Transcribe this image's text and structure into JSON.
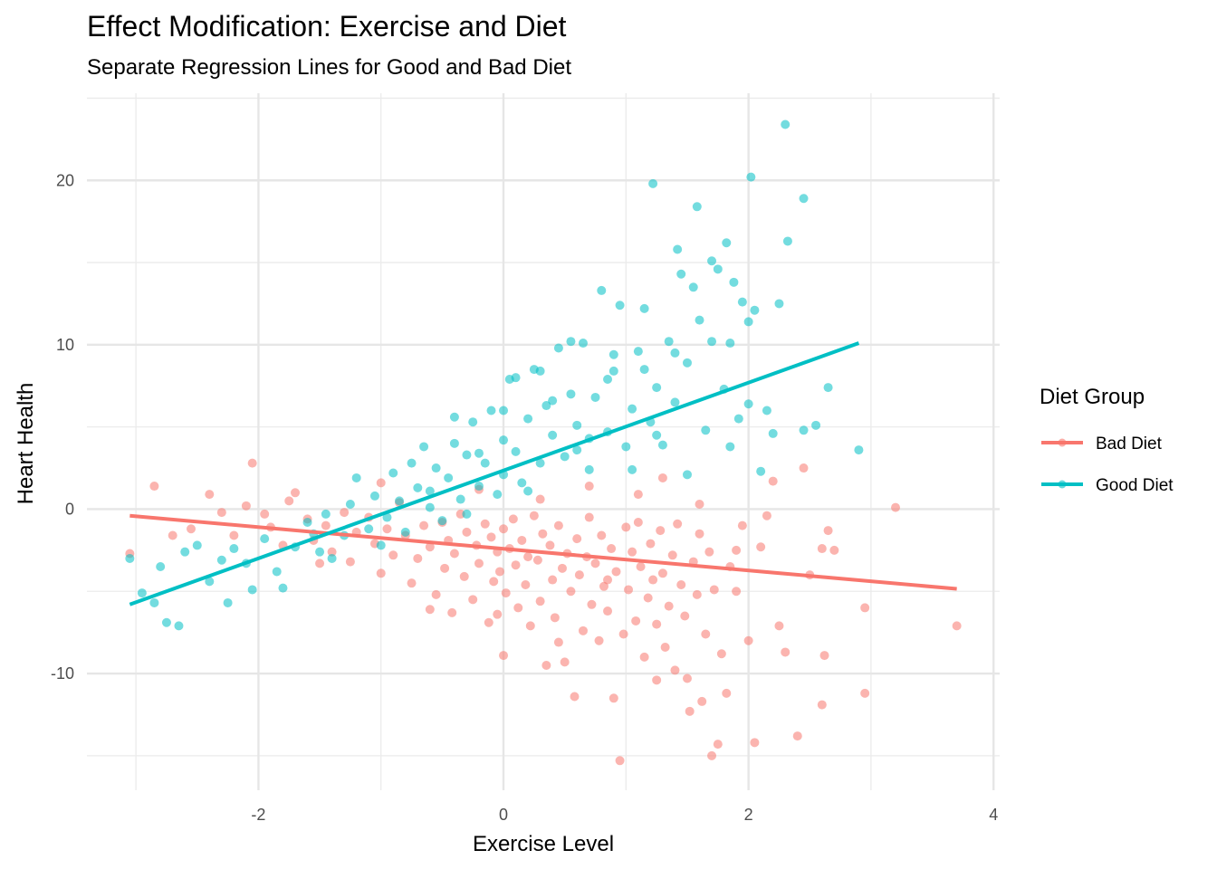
{
  "chart_data": {
    "type": "scatter",
    "title": "Effect Modification: Exercise and Diet",
    "subtitle": "Separate Regression Lines for Good and Bad Diet",
    "xlabel": "Exercise Level",
    "ylabel": "Heart Health",
    "xlim": [
      -3.4,
      4.05
    ],
    "ylim": [
      -17.1,
      25.3
    ],
    "x_ticks": [
      -2,
      0,
      2,
      4
    ],
    "x_tick_labels": [
      "-2",
      "0",
      "2",
      "4"
    ],
    "y_ticks": [
      -10,
      0,
      10,
      20
    ],
    "y_tick_labels": [
      "-10",
      "0",
      "10",
      "20"
    ],
    "grid": true,
    "legend": {
      "title": "Diet Group",
      "position": "right",
      "entries": [
        "Bad Diet",
        "Good Diet"
      ]
    },
    "series": [
      {
        "name": "Bad Diet",
        "color": "#F8766D",
        "regression": {
          "x": [
            -3.05,
            3.7
          ],
          "y": [
            -0.4,
            -4.85
          ]
        },
        "points": [
          [
            -3.05,
            -2.7
          ],
          [
            -2.85,
            1.4
          ],
          [
            -2.7,
            -1.6
          ],
          [
            -2.55,
            -1.2
          ],
          [
            -2.4,
            0.9
          ],
          [
            -2.3,
            -0.2
          ],
          [
            -2.2,
            -1.6
          ],
          [
            -2.1,
            0.2
          ],
          [
            -2.05,
            2.8
          ],
          [
            -1.95,
            -0.3
          ],
          [
            -1.9,
            -1.1
          ],
          [
            -1.8,
            -2.2
          ],
          [
            -1.75,
            0.5
          ],
          [
            -1.7,
            1.0
          ],
          [
            -1.6,
            -0.6
          ],
          [
            -1.55,
            -1.9
          ],
          [
            -1.45,
            -1.0
          ],
          [
            -1.4,
            -2.6
          ],
          [
            -1.3,
            -0.2
          ],
          [
            -1.25,
            -3.2
          ],
          [
            -1.2,
            -1.4
          ],
          [
            -1.1,
            -0.5
          ],
          [
            -1.05,
            -2.1
          ],
          [
            -1.0,
            -3.9
          ],
          [
            -0.95,
            -1.2
          ],
          [
            -0.9,
            -2.8
          ],
          [
            -0.85,
            0.4
          ],
          [
            -0.8,
            -1.6
          ],
          [
            -0.75,
            -4.5
          ],
          [
            -0.7,
            -3.0
          ],
          [
            -0.65,
            -1.0
          ],
          [
            -0.6,
            -2.3
          ],
          [
            -0.55,
            -5.2
          ],
          [
            -0.5,
            -0.8
          ],
          [
            -0.48,
            -3.6
          ],
          [
            -0.45,
            -1.9
          ],
          [
            -0.42,
            -6.3
          ],
          [
            -0.4,
            -2.7
          ],
          [
            -0.35,
            -0.3
          ],
          [
            -0.32,
            -4.1
          ],
          [
            -0.3,
            -1.4
          ],
          [
            -0.25,
            -5.5
          ],
          [
            -0.22,
            -2.2
          ],
          [
            -0.2,
            -3.3
          ],
          [
            -0.15,
            -0.9
          ],
          [
            -0.12,
            -6.9
          ],
          [
            -0.1,
            -1.7
          ],
          [
            -0.08,
            -4.4
          ],
          [
            -0.05,
            -2.6
          ],
          [
            -0.03,
            -3.8
          ],
          [
            0.0,
            -1.2
          ],
          [
            0.0,
            -8.9
          ],
          [
            0.02,
            -5.1
          ],
          [
            0.05,
            -2.4
          ],
          [
            0.08,
            -0.6
          ],
          [
            0.1,
            -3.4
          ],
          [
            0.12,
            -6.0
          ],
          [
            0.15,
            -1.9
          ],
          [
            0.18,
            -4.6
          ],
          [
            0.2,
            -2.9
          ],
          [
            0.22,
            -7.1
          ],
          [
            0.25,
            -0.4
          ],
          [
            0.28,
            -3.1
          ],
          [
            0.3,
            -5.6
          ],
          [
            0.32,
            -1.5
          ],
          [
            0.35,
            -9.5
          ],
          [
            0.38,
            -2.2
          ],
          [
            0.4,
            -4.3
          ],
          [
            0.42,
            -6.6
          ],
          [
            0.45,
            -1.0
          ],
          [
            0.48,
            -3.6
          ],
          [
            0.5,
            -9.3
          ],
          [
            0.52,
            -2.7
          ],
          [
            0.55,
            -5.0
          ],
          [
            0.58,
            -11.4
          ],
          [
            0.6,
            -1.8
          ],
          [
            0.62,
            -4.0
          ],
          [
            0.65,
            -7.4
          ],
          [
            0.68,
            -2.9
          ],
          [
            0.7,
            -0.5
          ],
          [
            0.72,
            -5.8
          ],
          [
            0.75,
            -3.3
          ],
          [
            0.78,
            -8.0
          ],
          [
            0.8,
            -1.6
          ],
          [
            0.82,
            -4.7
          ],
          [
            0.85,
            -6.2
          ],
          [
            0.88,
            -2.4
          ],
          [
            0.9,
            -11.5
          ],
          [
            0.92,
            -3.8
          ],
          [
            0.95,
            -15.3
          ],
          [
            0.98,
            -7.6
          ],
          [
            1.0,
            -1.1
          ],
          [
            1.02,
            -4.9
          ],
          [
            1.05,
            -2.6
          ],
          [
            1.08,
            -6.8
          ],
          [
            1.1,
            -0.8
          ],
          [
            1.12,
            -3.5
          ],
          [
            1.15,
            -9.0
          ],
          [
            1.18,
            -5.4
          ],
          [
            1.2,
            -2.1
          ],
          [
            1.22,
            -4.3
          ],
          [
            1.25,
            -7.0
          ],
          [
            1.28,
            -1.3
          ],
          [
            1.3,
            -3.9
          ],
          [
            1.32,
            -8.4
          ],
          [
            1.35,
            -5.9
          ],
          [
            1.38,
            -2.8
          ],
          [
            1.4,
            -9.8
          ],
          [
            1.42,
            -0.9
          ],
          [
            1.45,
            -4.6
          ],
          [
            1.48,
            -6.5
          ],
          [
            1.5,
            -10.3
          ],
          [
            1.52,
            -12.3
          ],
          [
            1.55,
            -3.2
          ],
          [
            1.58,
            -5.2
          ],
          [
            1.6,
            -1.5
          ],
          [
            1.62,
            -11.7
          ],
          [
            1.65,
            -7.6
          ],
          [
            1.68,
            -2.6
          ],
          [
            1.7,
            -15.0
          ],
          [
            1.72,
            -4.9
          ],
          [
            1.75,
            -14.3
          ],
          [
            1.78,
            -8.8
          ],
          [
            1.82,
            -11.2
          ],
          [
            1.85,
            -3.5
          ],
          [
            1.9,
            -5.0
          ],
          [
            1.95,
            -1.0
          ],
          [
            2.0,
            -8.0
          ],
          [
            2.05,
            -14.2
          ],
          [
            2.1,
            -2.3
          ],
          [
            2.15,
            -0.4
          ],
          [
            2.2,
            1.7
          ],
          [
            2.25,
            -7.1
          ],
          [
            2.3,
            -8.7
          ],
          [
            2.4,
            -13.8
          ],
          [
            2.45,
            2.5
          ],
          [
            2.5,
            -4.0
          ],
          [
            2.6,
            -2.4
          ],
          [
            2.6,
            -11.9
          ],
          [
            2.62,
            -8.9
          ],
          [
            2.65,
            -1.3
          ],
          [
            2.7,
            -2.5
          ],
          [
            2.95,
            -6.0
          ],
          [
            2.95,
            -11.2
          ],
          [
            3.2,
            0.1
          ],
          [
            3.7,
            -7.1
          ],
          [
            -1.5,
            -3.3
          ],
          [
            -1.0,
            1.6
          ],
          [
            -0.6,
            -6.1
          ],
          [
            -0.2,
            1.2
          ],
          [
            0.3,
            0.6
          ],
          [
            0.7,
            1.4
          ],
          [
            1.1,
            0.9
          ],
          [
            1.3,
            1.9
          ],
          [
            1.6,
            0.3
          ],
          [
            1.9,
            -2.5
          ],
          [
            0.45,
            -8.1
          ],
          [
            -0.05,
            -6.4
          ],
          [
            0.85,
            -4.3
          ],
          [
            1.25,
            -10.4
          ]
        ]
      },
      {
        "name": "Good Diet",
        "color": "#00BFC4",
        "regression": {
          "x": [
            -3.05,
            2.9
          ],
          "y": [
            -5.8,
            10.1
          ]
        },
        "points": [
          [
            -3.05,
            -3.0
          ],
          [
            -2.95,
            -5.1
          ],
          [
            -2.85,
            -5.7
          ],
          [
            -2.8,
            -3.5
          ],
          [
            -2.75,
            -6.9
          ],
          [
            -2.65,
            -7.1
          ],
          [
            -2.6,
            -2.6
          ],
          [
            -2.5,
            -2.2
          ],
          [
            -2.4,
            -4.4
          ],
          [
            -2.3,
            -3.1
          ],
          [
            -2.25,
            -5.7
          ],
          [
            -2.2,
            -2.4
          ],
          [
            -2.1,
            -3.3
          ],
          [
            -2.05,
            -4.9
          ],
          [
            -1.95,
            -1.8
          ],
          [
            -1.85,
            -3.8
          ],
          [
            -1.8,
            -4.8
          ],
          [
            -1.7,
            -2.3
          ],
          [
            -1.6,
            -0.8
          ],
          [
            -1.5,
            -2.6
          ],
          [
            -1.45,
            -0.3
          ],
          [
            -1.4,
            -3.0
          ],
          [
            -1.3,
            -1.6
          ],
          [
            -1.25,
            0.3
          ],
          [
            -1.2,
            1.9
          ],
          [
            -1.1,
            -1.2
          ],
          [
            -1.05,
            0.8
          ],
          [
            -0.95,
            -0.5
          ],
          [
            -0.9,
            2.2
          ],
          [
            -0.85,
            0.5
          ],
          [
            -0.8,
            -1.4
          ],
          [
            -0.7,
            1.3
          ],
          [
            -0.65,
            3.8
          ],
          [
            -0.6,
            0.1
          ],
          [
            -0.55,
            2.5
          ],
          [
            -0.5,
            -0.7
          ],
          [
            -0.45,
            1.9
          ],
          [
            -0.4,
            4.0
          ],
          [
            -0.35,
            0.6
          ],
          [
            -0.3,
            3.3
          ],
          [
            -0.25,
            5.3
          ],
          [
            -0.2,
            1.4
          ],
          [
            -0.15,
            2.8
          ],
          [
            -0.1,
            6.0
          ],
          [
            -0.05,
            0.9
          ],
          [
            0.0,
            4.2
          ],
          [
            0.0,
            2.1
          ],
          [
            0.05,
            7.9
          ],
          [
            0.1,
            3.5
          ],
          [
            0.15,
            1.6
          ],
          [
            0.2,
            5.5
          ],
          [
            0.25,
            8.5
          ],
          [
            0.3,
            2.8
          ],
          [
            0.35,
            6.3
          ],
          [
            0.4,
            4.5
          ],
          [
            0.45,
            9.8
          ],
          [
            0.5,
            3.2
          ],
          [
            0.55,
            7.0
          ],
          [
            0.6,
            5.1
          ],
          [
            0.65,
            10.1
          ],
          [
            0.7,
            2.4
          ],
          [
            0.75,
            6.8
          ],
          [
            0.8,
            13.3
          ],
          [
            0.85,
            4.7
          ],
          [
            0.9,
            8.4
          ],
          [
            0.95,
            12.4
          ],
          [
            1.0,
            3.8
          ],
          [
            1.05,
            6.1
          ],
          [
            1.1,
            9.6
          ],
          [
            1.15,
            12.2
          ],
          [
            1.2,
            5.3
          ],
          [
            1.22,
            19.8
          ],
          [
            1.25,
            7.4
          ],
          [
            1.3,
            3.9
          ],
          [
            1.35,
            10.2
          ],
          [
            1.4,
            6.5
          ],
          [
            1.42,
            15.8
          ],
          [
            1.45,
            14.3
          ],
          [
            1.5,
            8.9
          ],
          [
            1.55,
            13.5
          ],
          [
            1.58,
            18.4
          ],
          [
            1.6,
            11.5
          ],
          [
            1.65,
            4.8
          ],
          [
            1.7,
            15.1
          ],
          [
            1.75,
            14.6
          ],
          [
            1.8,
            7.3
          ],
          [
            1.82,
            16.2
          ],
          [
            1.85,
            10.1
          ],
          [
            1.88,
            13.8
          ],
          [
            1.92,
            5.5
          ],
          [
            1.95,
            12.6
          ],
          [
            2.0,
            11.4
          ],
          [
            2.02,
            20.2
          ],
          [
            2.05,
            12.1
          ],
          [
            2.1,
            2.3
          ],
          [
            2.15,
            6.0
          ],
          [
            2.2,
            4.6
          ],
          [
            2.25,
            12.5
          ],
          [
            2.3,
            23.4
          ],
          [
            2.32,
            16.3
          ],
          [
            2.45,
            4.8
          ],
          [
            2.45,
            18.9
          ],
          [
            2.55,
            5.1
          ],
          [
            2.65,
            7.4
          ],
          [
            2.9,
            3.6
          ],
          [
            -1.55,
            -1.5
          ],
          [
            -1.0,
            -2.2
          ],
          [
            -0.75,
            2.8
          ],
          [
            -0.4,
            5.6
          ],
          [
            0.1,
            8.0
          ],
          [
            0.3,
            8.4
          ],
          [
            0.55,
            10.2
          ],
          [
            0.9,
            9.4
          ],
          [
            1.15,
            8.5
          ],
          [
            1.4,
            9.5
          ],
          [
            1.7,
            10.2
          ],
          [
            0.2,
            1.1
          ],
          [
            0.6,
            3.6
          ],
          [
            0.85,
            7.9
          ],
          [
            1.05,
            2.4
          ],
          [
            -0.2,
            3.4
          ],
          [
            0.4,
            6.6
          ],
          [
            -0.6,
            1.1
          ],
          [
            1.25,
            4.5
          ],
          [
            1.5,
            2.1
          ],
          [
            0.7,
            4.3
          ],
          [
            0.0,
            6.0
          ],
          [
            -0.3,
            -0.3
          ],
          [
            1.85,
            3.8
          ],
          [
            2.0,
            6.4
          ]
        ]
      }
    ]
  }
}
